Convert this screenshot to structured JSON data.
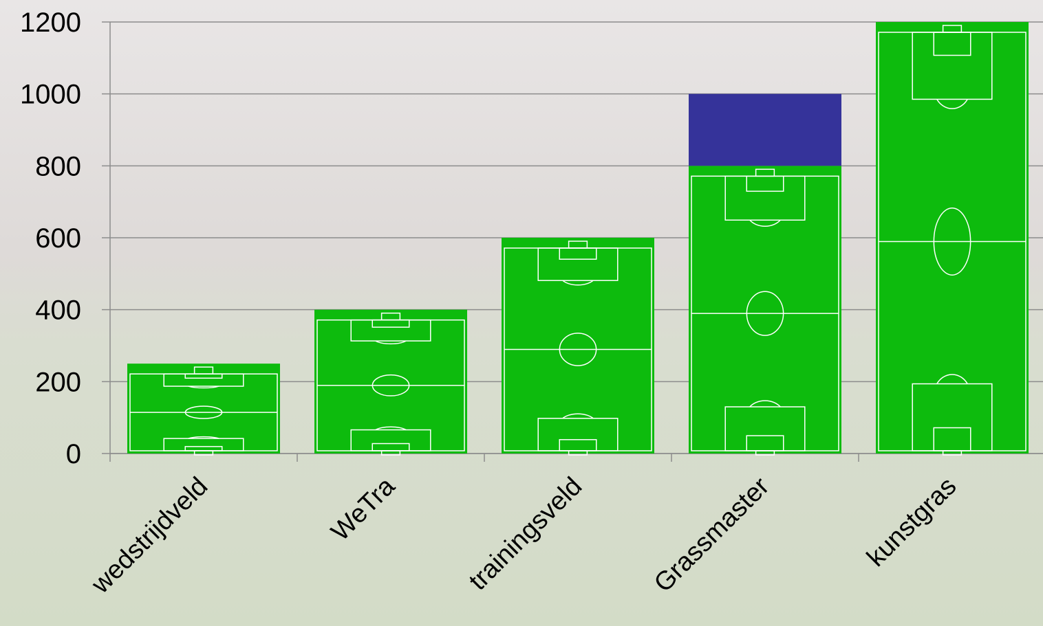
{
  "chart_data": {
    "type": "stacked-bar",
    "categories": [
      "wedstrijdveld",
      "WeTra",
      "trainingsveld",
      "Grassmaster",
      "kunstgras"
    ],
    "series": [
      {
        "color": "#0dbb0d",
        "values": [
          250,
          400,
          600,
          800,
          1200
        ]
      },
      {
        "color": "#35339a",
        "values": [
          null,
          null,
          null,
          200,
          null
        ]
      }
    ],
    "ylim": [
      0,
      1200
    ],
    "yticks": [
      0,
      200,
      400,
      600,
      800,
      1000,
      1200
    ],
    "grid": true
  }
}
